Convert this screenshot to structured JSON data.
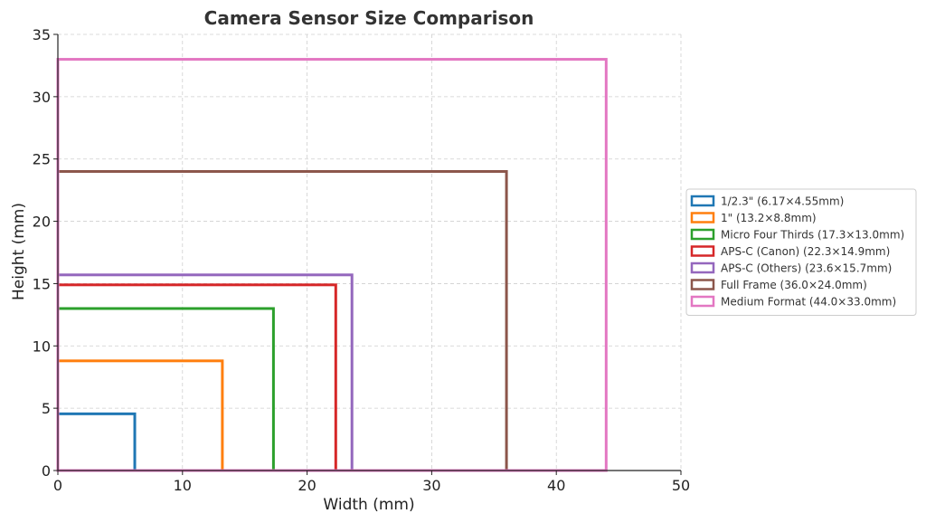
{
  "chart_data": {
    "type": "rectangles",
    "title": "Camera Sensor Size Comparison",
    "xlabel": "Width (mm)",
    "ylabel": "Height (mm)",
    "xlim": [
      0,
      50
    ],
    "ylim": [
      0,
      35
    ],
    "xticks": [
      0,
      10,
      20,
      30,
      40,
      50
    ],
    "yticks": [
      0,
      5,
      10,
      15,
      20,
      25,
      30,
      35
    ],
    "grid": true,
    "legend_position": "right",
    "series": [
      {
        "name": "1/2.3\" (6.17×4.55mm)",
        "width": 6.17,
        "height": 4.55,
        "color": "#1f77b4"
      },
      {
        "name": "1\" (13.2×8.8mm)",
        "width": 13.2,
        "height": 8.8,
        "color": "#ff7f0e"
      },
      {
        "name": "Micro Four Thirds (17.3×13.0mm)",
        "width": 17.3,
        "height": 13.0,
        "color": "#2ca02c"
      },
      {
        "name": "APS-C (Canon) (22.3×14.9mm)",
        "width": 22.3,
        "height": 14.9,
        "color": "#d62728"
      },
      {
        "name": "APS-C (Others) (23.6×15.7mm)",
        "width": 23.6,
        "height": 15.7,
        "color": "#9467bd"
      },
      {
        "name": "Full Frame (36.0×24.0mm)",
        "width": 36.0,
        "height": 24.0,
        "color": "#8c564b"
      },
      {
        "name": "Medium Format (44.0×33.0mm)",
        "width": 44.0,
        "height": 33.0,
        "color": "#e377c2"
      }
    ]
  }
}
